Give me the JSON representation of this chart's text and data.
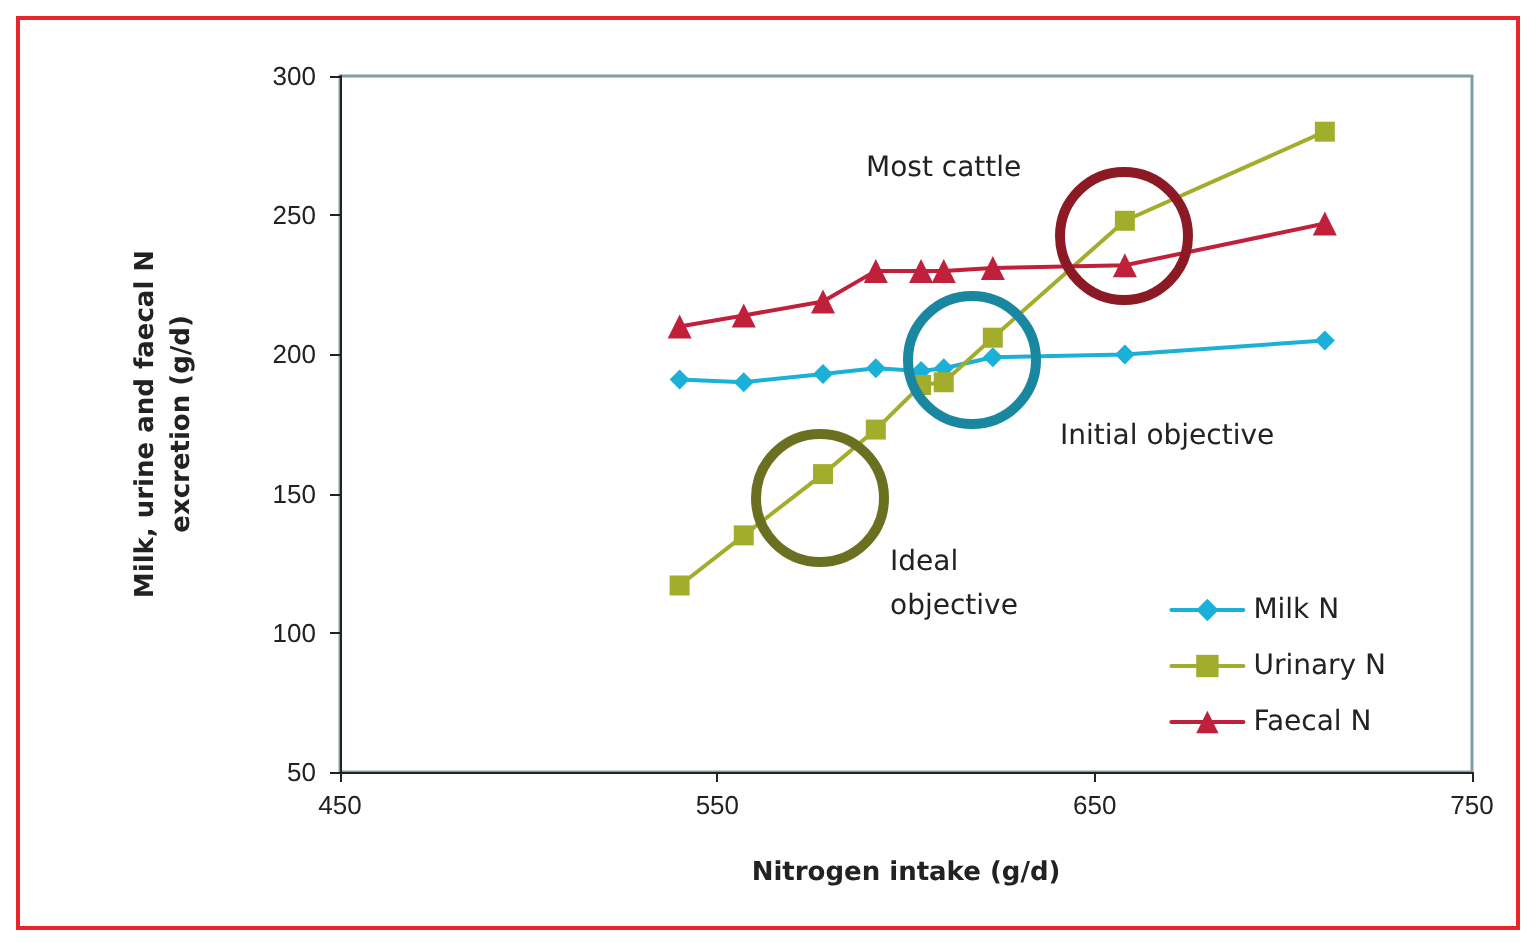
{
  "chart_data": {
    "type": "line",
    "xlabel": "Nitrogen intake (g/d)",
    "ylabel": "Milk, urine and faecal N\nexcretion (g/d)",
    "x": [
      540,
      557,
      578,
      592,
      604,
      610,
      623,
      658,
      711
    ],
    "series": [
      {
        "name": "Milk N",
        "color": "#1ab0d8",
        "marker": "diamond",
        "values": [
          191,
          190,
          193,
          195,
          194,
          195,
          199,
          200,
          205
        ]
      },
      {
        "name": "Urinary N",
        "color": "#a3ad2c",
        "marker": "square",
        "values": [
          117,
          135,
          157,
          173,
          189,
          190,
          206,
          248,
          280
        ]
      },
      {
        "name": "Faecal N",
        "color": "#c0203a",
        "marker": "triangle",
        "values": [
          210,
          214,
          219,
          230,
          230,
          230,
          231,
          232,
          247
        ]
      }
    ],
    "xlim": [
      450,
      750
    ],
    "xticks": [
      450,
      550,
      650,
      750
    ],
    "ylim": [
      50,
      300
    ],
    "yticks": [
      50,
      100,
      150,
      200,
      250,
      300
    ],
    "grid": false,
    "legend": "bottom right",
    "line_style": "solid",
    "annotations": [
      "Most cattle",
      "Initial objective",
      "Ideal objective"
    ]
  }
}
